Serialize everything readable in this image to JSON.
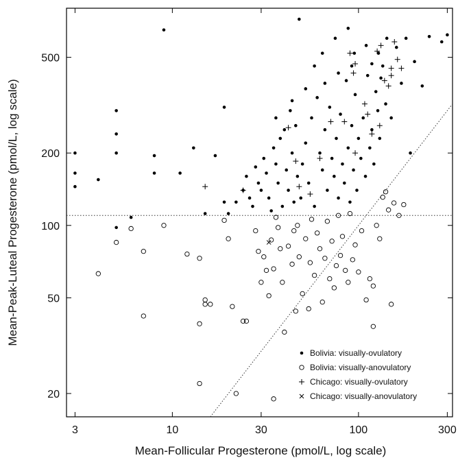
{
  "chart_data": {
    "type": "scatter",
    "xlabel": "Mean-Follicular Progesterone (pmol/L, log scale)",
    "ylabel": "Mean-Peak-Luteal Progesterone (pmol/L, log scale)",
    "x_scale": "log",
    "y_scale": "log",
    "xlim": [
      2.7,
      320
    ],
    "ylim": [
      16,
      800
    ],
    "x_ticks": [
      3,
      10,
      30,
      100,
      300
    ],
    "x_tick_labels": [
      "3",
      "10",
      "30",
      "100",
      "300"
    ],
    "y_ticks": [
      20,
      50,
      100,
      200,
      500
    ],
    "y_tick_labels": [
      "20",
      "50",
      "100",
      "200",
      "500"
    ],
    "grid": false,
    "legend_position": "bottom-right",
    "reference_lines": [
      {
        "kind": "horizontal",
        "y": 110,
        "style": "dotted"
      },
      {
        "kind": "diagonal",
        "from": [
          16,
          16
        ],
        "to": [
          320,
          320
        ],
        "style": "dotted"
      }
    ],
    "series": [
      {
        "name": "Bolivia: visually-ovulatory",
        "marker": "dot",
        "points": [
          [
            3,
            200
          ],
          [
            3,
            165
          ],
          [
            3,
            145
          ],
          [
            4,
            155
          ],
          [
            5,
            300
          ],
          [
            5,
            240
          ],
          [
            5,
            200
          ],
          [
            5,
            98
          ],
          [
            6,
            108
          ],
          [
            8,
            195
          ],
          [
            8,
            165
          ],
          [
            9,
            650
          ],
          [
            11,
            165
          ],
          [
            13,
            210
          ],
          [
            15,
            112
          ],
          [
            17,
            195
          ],
          [
            19,
            310
          ],
          [
            19,
            125
          ],
          [
            20,
            112
          ],
          [
            22,
            125
          ],
          [
            24,
            140
          ],
          [
            25,
            160
          ],
          [
            26,
            130
          ],
          [
            27,
            120
          ],
          [
            28,
            175
          ],
          [
            29,
            150
          ],
          [
            30,
            140
          ],
          [
            31,
            190
          ],
          [
            32,
            165
          ],
          [
            33,
            130
          ],
          [
            34,
            115
          ],
          [
            35,
            210
          ],
          [
            36,
            180
          ],
          [
            37,
            150
          ],
          [
            38,
            230
          ],
          [
            39,
            120
          ],
          [
            40,
            250
          ],
          [
            41,
            170
          ],
          [
            42,
            140
          ],
          [
            43,
            300
          ],
          [
            44,
            200
          ],
          [
            45,
            125
          ],
          [
            46,
            260
          ],
          [
            47,
            160
          ],
          [
            48,
            720
          ],
          [
            49,
            130
          ],
          [
            50,
            180
          ],
          [
            52,
            220
          ],
          [
            54,
            150
          ],
          [
            56,
            280
          ],
          [
            58,
            120
          ],
          [
            60,
            340
          ],
          [
            62,
            200
          ],
          [
            64,
            170
          ],
          [
            66,
            250
          ],
          [
            68,
            140
          ],
          [
            70,
            310
          ],
          [
            72,
            190
          ],
          [
            74,
            160
          ],
          [
            76,
            230
          ],
          [
            78,
            130
          ],
          [
            80,
            290
          ],
          [
            82,
            180
          ],
          [
            84,
            150
          ],
          [
            86,
            400
          ],
          [
            88,
            210
          ],
          [
            90,
            125
          ],
          [
            92,
            260
          ],
          [
            94,
            170
          ],
          [
            96,
            350
          ],
          [
            98,
            140
          ],
          [
            100,
            230
          ],
          [
            103,
            190
          ],
          [
            106,
            280
          ],
          [
            109,
            160
          ],
          [
            112,
            420
          ],
          [
            115,
            210
          ],
          [
            118,
            250
          ],
          [
            121,
            180
          ],
          [
            124,
            360
          ],
          [
            127,
            300
          ],
          [
            130,
            230
          ],
          [
            135,
            460
          ],
          [
            140,
            320
          ],
          [
            150,
            280
          ],
          [
            160,
            550
          ],
          [
            170,
            390
          ],
          [
            180,
            600
          ],
          [
            190,
            200
          ],
          [
            200,
            480
          ],
          [
            220,
            380
          ],
          [
            240,
            610
          ],
          [
            280,
            580
          ],
          [
            300,
            620
          ],
          [
            58,
            460
          ],
          [
            64,
            520
          ],
          [
            75,
            600
          ],
          [
            88,
            660
          ],
          [
            95,
            520
          ],
          [
            110,
            560
          ],
          [
            128,
            520
          ],
          [
            142,
            600
          ],
          [
            36,
            280
          ],
          [
            44,
            330
          ],
          [
            52,
            370
          ],
          [
            66,
            390
          ],
          [
            78,
            430
          ],
          [
            92,
            460
          ],
          [
            118,
            470
          ],
          [
            132,
            410
          ]
        ]
      },
      {
        "name": "Bolivia: visually-anovulatory",
        "marker": "open-circle",
        "points": [
          [
            4,
            63
          ],
          [
            5,
            85
          ],
          [
            6,
            97
          ],
          [
            7,
            78
          ],
          [
            7,
            42
          ],
          [
            9,
            100
          ],
          [
            12,
            76
          ],
          [
            14,
            73
          ],
          [
            14,
            39
          ],
          [
            15,
            49
          ],
          [
            15,
            47
          ],
          [
            16,
            47
          ],
          [
            14,
            22
          ],
          [
            19,
            105
          ],
          [
            20,
            88
          ],
          [
            21,
            46
          ],
          [
            22,
            20
          ],
          [
            24,
            40
          ],
          [
            25,
            40
          ],
          [
            28,
            95
          ],
          [
            29,
            78
          ],
          [
            30,
            58
          ],
          [
            31,
            74
          ],
          [
            32,
            65
          ],
          [
            33,
            51
          ],
          [
            34,
            87
          ],
          [
            35,
            66
          ],
          [
            36,
            108
          ],
          [
            37,
            98
          ],
          [
            38,
            80
          ],
          [
            35,
            19
          ],
          [
            39,
            58
          ],
          [
            40,
            36
          ],
          [
            42,
            82
          ],
          [
            44,
            69
          ],
          [
            45,
            95
          ],
          [
            46,
            44
          ],
          [
            47,
            100
          ],
          [
            48,
            74
          ],
          [
            50,
            52
          ],
          [
            52,
            88
          ],
          [
            54,
            45
          ],
          [
            55,
            70
          ],
          [
            56,
            106
          ],
          [
            58,
            62
          ],
          [
            60,
            93
          ],
          [
            62,
            80
          ],
          [
            64,
            48
          ],
          [
            66,
            73
          ],
          [
            68,
            104
          ],
          [
            70,
            60
          ],
          [
            72,
            86
          ],
          [
            74,
            55
          ],
          [
            76,
            68
          ],
          [
            78,
            110
          ],
          [
            80,
            75
          ],
          [
            82,
            90
          ],
          [
            85,
            65
          ],
          [
            88,
            58
          ],
          [
            90,
            112
          ],
          [
            93,
            72
          ],
          [
            96,
            83
          ],
          [
            100,
            64
          ],
          [
            104,
            95
          ],
          [
            110,
            49
          ],
          [
            115,
            60
          ],
          [
            120,
            56
          ],
          [
            125,
            100
          ],
          [
            130,
            88
          ],
          [
            135,
            131
          ],
          [
            140,
            138
          ],
          [
            145,
            116
          ],
          [
            150,
            47
          ],
          [
            155,
            124
          ],
          [
            120,
            38
          ],
          [
            165,
            110
          ],
          [
            175,
            122
          ]
        ]
      },
      {
        "name": "Chicago: visually-ovulatory",
        "marker": "plus",
        "points": [
          [
            15,
            145
          ],
          [
            24,
            140
          ],
          [
            42,
            255
          ],
          [
            46,
            185
          ],
          [
            48,
            145
          ],
          [
            55,
            135
          ],
          [
            62,
            190
          ],
          [
            71,
            270
          ],
          [
            84,
            270
          ],
          [
            90,
            520
          ],
          [
            94,
            430
          ],
          [
            96,
            200
          ],
          [
            108,
            320
          ],
          [
            112,
            290
          ],
          [
            118,
            240
          ],
          [
            126,
            530
          ],
          [
            130,
            260
          ],
          [
            132,
            560
          ],
          [
            138,
            400
          ],
          [
            145,
            380
          ],
          [
            150,
            450
          ],
          [
            156,
            580
          ],
          [
            162,
            490
          ],
          [
            170,
            450
          ],
          [
            150,
            420
          ],
          [
            96,
            470
          ]
        ]
      },
      {
        "name": "Chicago: visually-anovulatory",
        "marker": "x",
        "points": [
          [
            33,
            85
          ]
        ]
      }
    ]
  }
}
